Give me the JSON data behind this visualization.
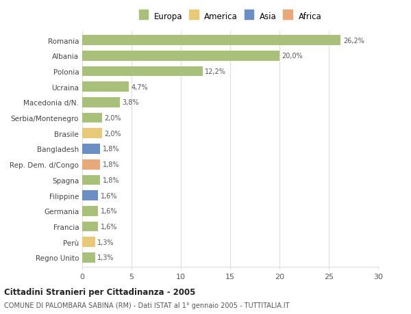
{
  "categories": [
    "Regno Unito",
    "Perù",
    "Francia",
    "Germania",
    "Filippine",
    "Spagna",
    "Rep. Dem. d/Congo",
    "Bangladesh",
    "Brasile",
    "Serbia/Montenegro",
    "Macedonia d/N.",
    "Ucraina",
    "Polonia",
    "Albania",
    "Romania"
  ],
  "values": [
    1.3,
    1.3,
    1.6,
    1.6,
    1.6,
    1.8,
    1.8,
    1.8,
    2.0,
    2.0,
    3.8,
    4.7,
    12.2,
    20.0,
    26.2
  ],
  "labels": [
    "1,3%",
    "1,3%",
    "1,6%",
    "1,6%",
    "1,6%",
    "1,8%",
    "1,8%",
    "1,8%",
    "2,0%",
    "2,0%",
    "3,8%",
    "4,7%",
    "12,2%",
    "20,0%",
    "26,2%"
  ],
  "colors": [
    "#a8c07a",
    "#e8c97a",
    "#a8c07a",
    "#a8c07a",
    "#6b8ec4",
    "#a8c07a",
    "#e8a87a",
    "#6b8ec4",
    "#e8c97a",
    "#a8c07a",
    "#a8c07a",
    "#a8c07a",
    "#a8c07a",
    "#a8c07a",
    "#a8c07a"
  ],
  "legend_labels": [
    "Europa",
    "America",
    "Asia",
    "Africa"
  ],
  "legend_colors": [
    "#a8c07a",
    "#e8c97a",
    "#6b8ec4",
    "#e8a87a"
  ],
  "title": "Cittadini Stranieri per Cittadinanza - 2005",
  "subtitle": "COMUNE DI PALOMBARA SABINA (RM) - Dati ISTAT al 1° gennaio 2005 - TUTTITALIA.IT",
  "xlim": [
    0,
    30
  ],
  "xticks": [
    0,
    5,
    10,
    15,
    20,
    25,
    30
  ],
  "background_color": "#ffffff",
  "grid_color": "#dddddd",
  "bar_height": 0.65
}
